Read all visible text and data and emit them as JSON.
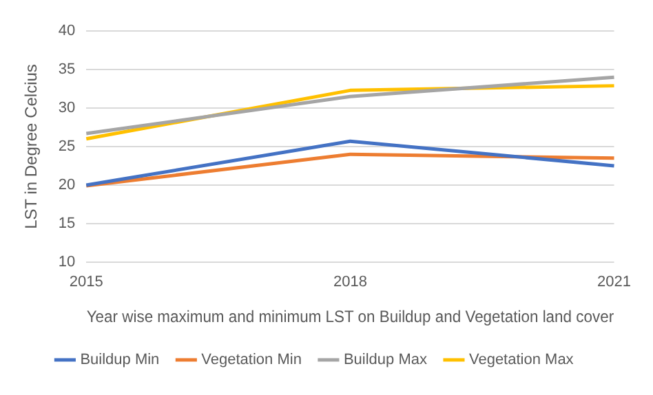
{
  "chart_data": {
    "type": "line",
    "xlabel": "Year wise maximum and minimum LST on Buildup and Vegetation land cover",
    "ylabel": "LST in Degree Celcius",
    "categories": [
      "2015",
      "2018",
      "2021"
    ],
    "series": [
      {
        "name": "Buildup Min",
        "color": "#4472c4",
        "values": [
          20.0,
          25.7,
          22.5
        ]
      },
      {
        "name": "Vegetation Min",
        "color": "#ed7d31",
        "values": [
          19.9,
          24.0,
          23.5
        ]
      },
      {
        "name": "Buildup Max",
        "color": "#a5a5a5",
        "values": [
          26.7,
          31.5,
          34.0
        ]
      },
      {
        "name": "Vegetation Max",
        "color": "#ffc000",
        "values": [
          26.0,
          32.3,
          32.9
        ]
      }
    ],
    "ylim": [
      10,
      40
    ],
    "yticks": [
      10,
      15,
      20,
      25,
      30,
      35,
      40
    ],
    "grid": "y",
    "legend": "bottom",
    "marker": "none"
  }
}
